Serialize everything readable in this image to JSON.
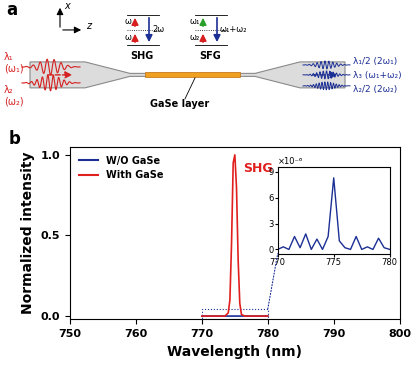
{
  "panel_a": {
    "panel_label": "a",
    "axes": [
      "x",
      "z"
    ],
    "inputs": [
      {
        "wavelength": "λ₁",
        "frequency": "(ω₁)"
      },
      {
        "wavelength": "λ₂",
        "frequency": "(ω₂)"
      }
    ],
    "outputs": [
      "λ₁/2 (2ω₁)",
      "λ₃ (ω₁+ω₂)",
      "λ₂/2 (2ω₂)"
    ],
    "processes": [
      {
        "name": "SHG",
        "levels": [
          "ω",
          "ω"
        ],
        "sum": "2ω"
      },
      {
        "name": "SFG",
        "levels": [
          "ω₁",
          "ω₂"
        ],
        "sum": "ω₁+ω₂"
      }
    ],
    "layer": "GaSe layer"
  },
  "chart_data": {
    "type": "line",
    "panel_label": "b",
    "xlabel": "Wavelength (nm)",
    "ylabel": "Normalized intensity",
    "xlim": [
      750,
      800
    ],
    "xticks": [
      750,
      760,
      770,
      780,
      790,
      800
    ],
    "ylim": [
      -0.02,
      1.05
    ],
    "yticks": [
      {
        "value": 0,
        "label": "0.0"
      },
      {
        "value": 0.5,
        "label": "0.5"
      },
      {
        "value": 1,
        "label": "1.0"
      }
    ],
    "legend": "upper left",
    "annotation": "SHG",
    "series": [
      {
        "name": "W/O GaSe",
        "color": "#1c2f94",
        "x": [
          770,
          770.5,
          771,
          771.5,
          772,
          772.5,
          773,
          773.5,
          774,
          774.5,
          775,
          775.5,
          776,
          776.5,
          777,
          777.5,
          778,
          778.5,
          779,
          779.5,
          780
        ],
        "values": [
          0,
          3e-07,
          0,
          1.5e-06,
          2e-07,
          1.8e-06,
          0,
          1.2e-06,
          0,
          1.5e-06,
          8.3e-06,
          1e-06,
          2e-07,
          0,
          1.5e-06,
          0,
          3e-07,
          0,
          1.3e-06,
          2e-07,
          0
        ]
      },
      {
        "name": "With GaSe",
        "color": "#e0201e",
        "x": [
          770,
          771,
          772,
          773,
          773.5,
          774,
          774.25,
          774.5,
          774.75,
          775,
          775.25,
          775.5,
          775.75,
          776,
          776.5,
          777,
          778,
          779,
          780
        ],
        "values": [
          0,
          0,
          0,
          0,
          0,
          0.02,
          0.1,
          0.45,
          0.95,
          1.0,
          0.8,
          0.35,
          0.08,
          0.01,
          0,
          0,
          0,
          0,
          0
        ]
      }
    ],
    "inset": {
      "series": "W/O GaSe",
      "xlim": [
        770,
        780
      ],
      "xticks": [
        770,
        775,
        780
      ],
      "ylim": [
        -5e-07,
        9.5e-06
      ],
      "yticks": [
        0,
        {
          "value": 3e-06,
          "label": "3"
        },
        {
          "value": 6e-06,
          "label": "6"
        },
        {
          "value": 9e-06,
          "label": "9"
        }
      ],
      "multiplier": "×10⁻⁶"
    }
  }
}
